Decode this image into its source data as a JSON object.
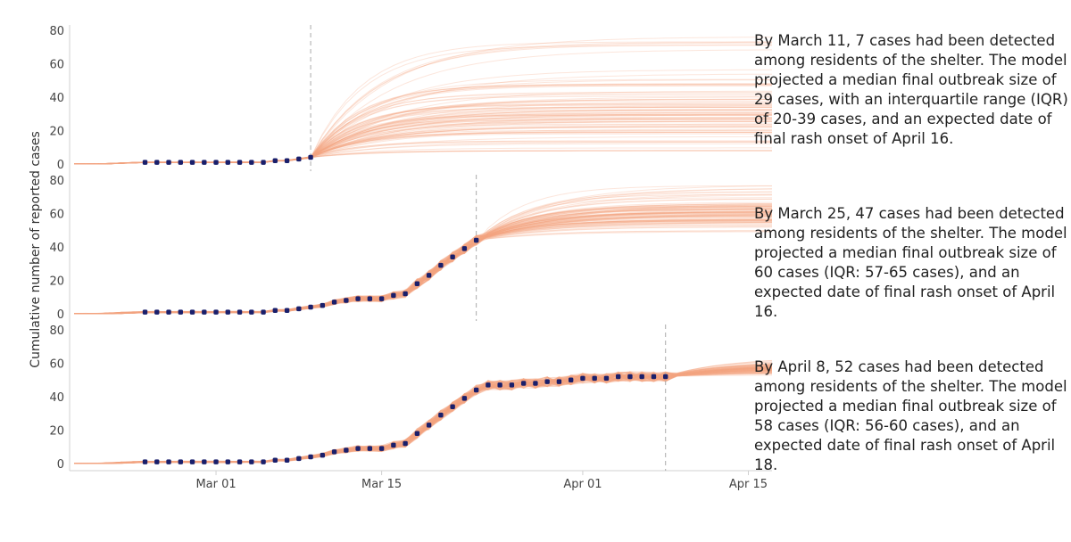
{
  "chart_data": {
    "type": "line",
    "ylabel": "Cumulative number of reported cases",
    "xlabel": "",
    "x_ticks": [
      {
        "label": "Mar 01",
        "day": 28
      },
      {
        "label": "Mar 15",
        "day": 42
      },
      {
        "label": "Apr 01",
        "day": 59
      },
      {
        "label": "Apr 15",
        "day": 73
      }
    ],
    "x_range": [
      16,
      75
    ],
    "y_ticks": [
      0,
      20,
      40,
      60,
      80
    ],
    "ylim": [
      0,
      80
    ],
    "colors": {
      "simulations": "#f4a582",
      "observed": "#1a1f6b",
      "cutoff": "#aaaaaa",
      "axis": "#cccccc"
    },
    "observed": {
      "day": [
        22,
        23,
        24,
        25,
        26,
        27,
        28,
        29,
        30,
        31,
        32,
        33,
        34,
        35,
        36,
        37,
        38,
        39,
        40,
        41,
        42,
        43,
        44,
        45,
        46,
        47,
        48,
        49,
        50,
        51,
        52,
        53,
        54,
        55,
        56,
        57,
        58,
        59,
        60,
        61,
        62,
        63,
        64,
        65,
        66
      ],
      "cases": [
        1,
        1,
        1,
        1,
        1,
        1,
        1,
        1,
        1,
        1,
        1,
        2,
        2,
        3,
        4,
        5,
        7,
        8,
        9,
        9,
        9,
        11,
        12,
        18,
        23,
        29,
        34,
        39,
        44,
        47,
        47,
        47,
        48,
        48,
        49,
        49,
        50,
        51,
        51,
        51,
        52,
        52,
        52,
        52,
        52
      ]
    },
    "panels": [
      {
        "snapshot_label": "March 11",
        "cutoff_day": 36,
        "text": "By March 11, 7 cases had been detected among residents of the shelter. The model projected a median final outbreak size of 29 cases, with an interquartile range (IQR) of 20-39 cases, and an expected date of final rash onset of April 16.",
        "projection": {
          "final_median": 29,
          "iqr": [
            20,
            39
          ],
          "min": 8,
          "max": 78
        }
      },
      {
        "snapshot_label": "March 25",
        "cutoff_day": 50,
        "text": "By March 25, 47 cases had been detected among residents of the shelter. The model projected a median final outbreak size of 60 cases (IQR: 57-65 cases), and an expected date of final rash onset of April 16.",
        "projection": {
          "final_median": 60,
          "iqr": [
            57,
            65
          ],
          "min": 48,
          "max": 78
        }
      },
      {
        "snapshot_label": "April 8",
        "cutoff_day": 66,
        "text": "By April 8, 52 cases had been detected among residents of the shelter. The model projected a median final outbreak size of 58 cases (IQR: 56-60 cases), and an expected date of final rash onset of April 18.",
        "projection": {
          "final_median": 58,
          "iqr": [
            56,
            60
          ],
          "min": 52,
          "max": 64
        }
      }
    ]
  }
}
